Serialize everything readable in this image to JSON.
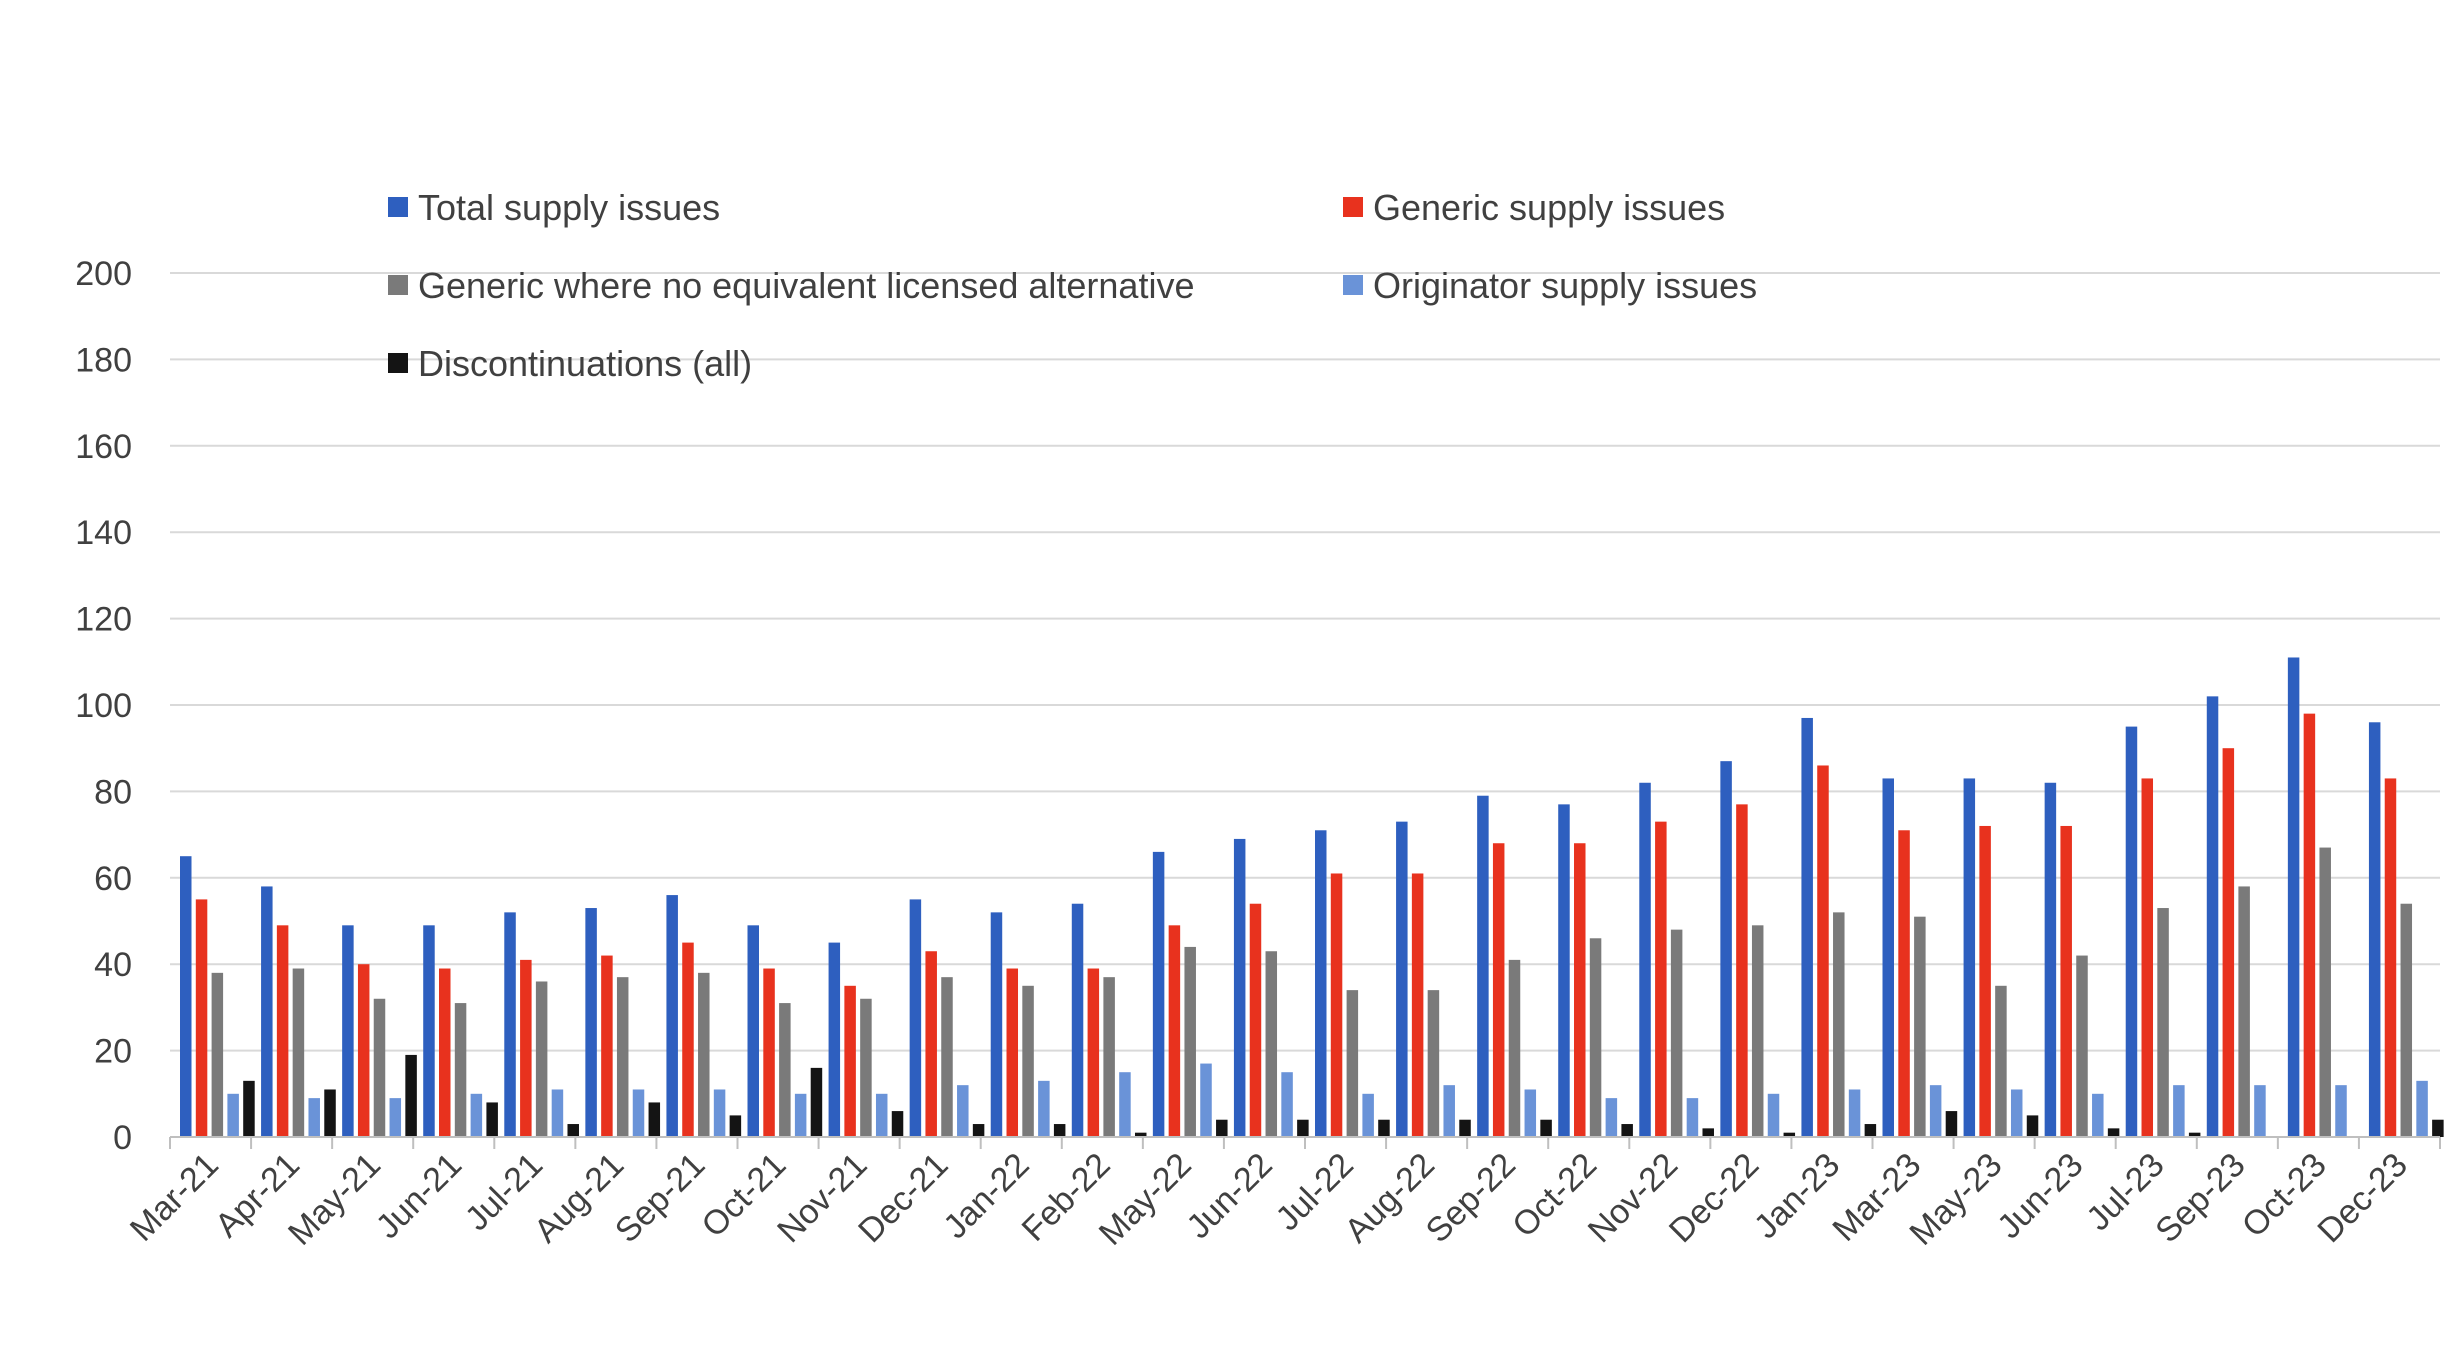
{
  "chart_data": {
    "type": "bar",
    "title": "",
    "xlabel": "",
    "ylabel": "",
    "ylim": [
      0,
      200
    ],
    "yticks": [
      0,
      20,
      40,
      60,
      80,
      100,
      120,
      140,
      160,
      180,
      200
    ],
    "grid": true,
    "legend_placement": "top",
    "categories": [
      "Mar-21",
      "Apr-21",
      "May-21",
      "Jun-21",
      "Jul-21",
      "Aug-21",
      "Sep-21",
      "Oct-21",
      "Nov-21",
      "Dec-21",
      "Jan-22",
      "Feb-22",
      "May-22",
      "Jun-22",
      "Jul-22",
      "Aug-22",
      "Sep-22",
      "Oct-22",
      "Nov-22",
      "Dec-22",
      "Jan-23",
      "Mar-23",
      "May-23",
      "Jun-23",
      "Jul-23",
      "Sep-23",
      "Oct-23",
      "Dec-23"
    ],
    "series": [
      {
        "name": "Total supply issues",
        "color": "#2e5fbf",
        "values": [
          65,
          58,
          49,
          49,
          52,
          53,
          56,
          49,
          45,
          55,
          52,
          54,
          66,
          69,
          71,
          73,
          79,
          77,
          82,
          87,
          97,
          83,
          83,
          82,
          95,
          102,
          111,
          96
        ]
      },
      {
        "name": "Generic supply issues",
        "color": "#e8321e",
        "values": [
          55,
          49,
          40,
          39,
          41,
          42,
          45,
          39,
          35,
          43,
          39,
          39,
          49,
          54,
          61,
          61,
          68,
          68,
          73,
          77,
          86,
          71,
          72,
          72,
          83,
          90,
          98,
          83
        ]
      },
      {
        "name": "Generic where no equivalent licensed alternative",
        "color": "#7a7a7a",
        "values": [
          38,
          39,
          32,
          31,
          36,
          37,
          38,
          31,
          32,
          37,
          35,
          37,
          44,
          43,
          34,
          34,
          41,
          46,
          48,
          49,
          52,
          51,
          35,
          42,
          53,
          58,
          67,
          54
        ]
      },
      {
        "name": "Originator supply issues",
        "color": "#6a93d8",
        "values": [
          10,
          9,
          9,
          10,
          11,
          11,
          11,
          10,
          10,
          12,
          13,
          15,
          17,
          15,
          10,
          12,
          11,
          9,
          9,
          10,
          11,
          12,
          11,
          10,
          12,
          12,
          12,
          13
        ]
      },
      {
        "name": "Discontinuations (all)",
        "color": "#141414",
        "values": [
          13,
          11,
          19,
          8,
          3,
          8,
          5,
          16,
          6,
          3,
          3,
          1,
          4,
          4,
          4,
          4,
          4,
          3,
          2,
          1,
          3,
          6,
          5,
          2,
          1,
          0,
          0,
          4
        ]
      }
    ]
  }
}
